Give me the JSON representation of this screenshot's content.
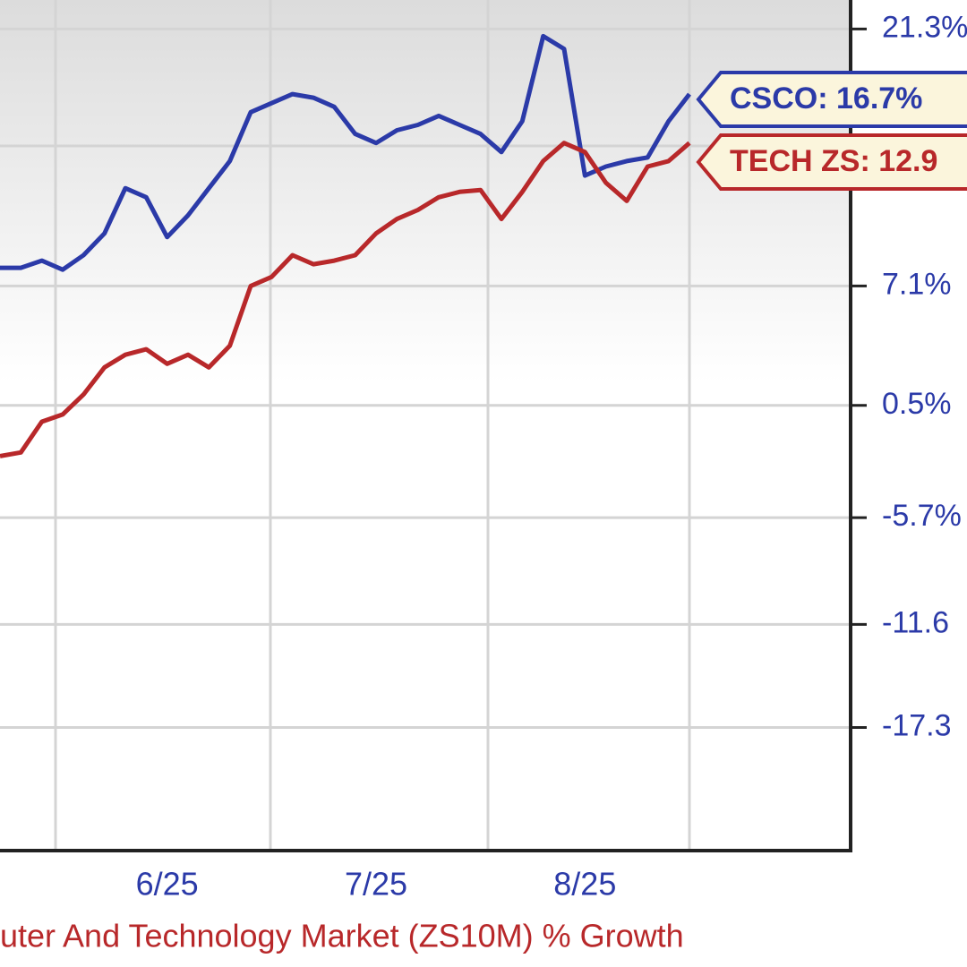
{
  "chart_data": {
    "type": "line",
    "x_label": "uter And Technology Market (ZS10M) % Growth",
    "categories": [
      null,
      null,
      null,
      null,
      null,
      null,
      null,
      null,
      "6/25",
      null,
      null,
      null,
      null,
      null,
      null,
      null,
      null,
      null,
      "7/25",
      null,
      null,
      null,
      null,
      null,
      null,
      null,
      null,
      null,
      "8/25",
      null,
      null,
      null,
      null,
      null
    ],
    "series": [
      {
        "name": "CSCO",
        "color": "#2b3aa8",
        "values": [
          8.1,
          8.1,
          8.5,
          8.0,
          8.8,
          10.0,
          12.5,
          12.0,
          9.8,
          11.0,
          12.5,
          14.0,
          16.7,
          17.2,
          17.7,
          17.5,
          17.0,
          15.5,
          15.0,
          15.7,
          16.0,
          16.5,
          16.0,
          15.5,
          14.5,
          16.2,
          20.9,
          20.2,
          13.2,
          13.7,
          14.0,
          14.2,
          16.2,
          17.7
        ]
      },
      {
        "name": "TECH ZS",
        "color": "#b8282a",
        "values": [
          -2.3,
          -2.1,
          -0.4,
          0.0,
          1.1,
          2.6,
          3.3,
          3.6,
          2.8,
          3.3,
          2.6,
          3.8,
          7.1,
          7.6,
          8.8,
          8.3,
          8.5,
          8.8,
          10.0,
          10.8,
          11.3,
          12.0,
          12.3,
          12.4,
          10.8,
          12.3,
          14.0,
          15.0,
          14.5,
          12.8,
          11.8,
          13.7,
          14.0,
          15.0
        ]
      }
    ],
    "annotations": [
      "CSCO: 16.7%",
      "TECH ZS: 12.9"
    ],
    "ylim": [
      -24.1,
      22.9
    ],
    "yticks": [
      {
        "value": 21.3,
        "label": "21.3%"
      },
      {
        "value": 7.1,
        "label": "7.1%"
      },
      {
        "value": 0.5,
        "label": "0.5%"
      },
      {
        "value": -5.7,
        "label": "-5.7%"
      },
      -11.6,
      -17.3
    ],
    "grid": true
  }
}
